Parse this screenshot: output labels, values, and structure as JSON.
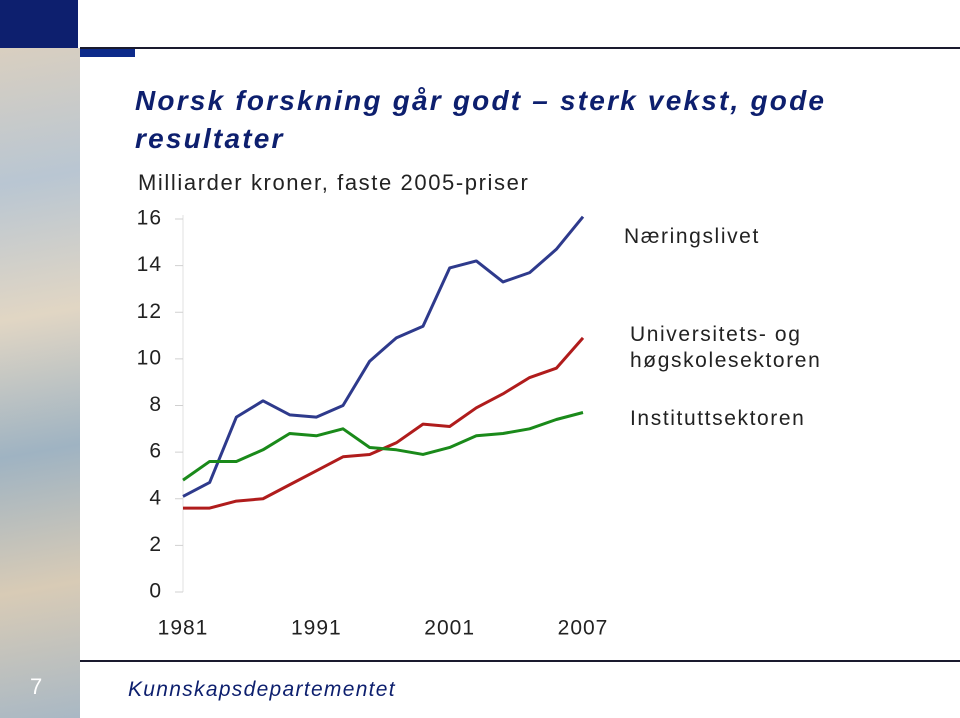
{
  "chart_data": {
    "type": "line",
    "title": "Norsk forskning går godt – sterk vekst, gode resultater",
    "subtitle": "Milliarder kroner, faste 2005-priser",
    "categories": [
      "1981",
      null,
      null,
      null,
      null,
      "1991",
      null,
      null,
      null,
      null,
      "2001",
      null,
      null,
      null,
      null,
      "2007"
    ],
    "series": [
      {
        "name": "Næringslivet",
        "color": "#2e3a8c",
        "values": [
          4.1,
          4.7,
          7.5,
          8.2,
          7.6,
          7.5,
          8.0,
          9.9,
          10.9,
          11.4,
          13.9,
          14.2,
          13.3,
          13.7,
          14.7,
          16.1
        ]
      },
      {
        "name": "Universitets- og høgskolesektoren",
        "color": "#b01c1c",
        "values": [
          3.6,
          3.6,
          3.9,
          4.0,
          4.6,
          5.2,
          5.8,
          5.9,
          6.4,
          7.2,
          7.1,
          7.9,
          8.5,
          9.2,
          9.6,
          10.9
        ]
      },
      {
        "name": "Instituttsektoren",
        "color": "#1a8a1a",
        "values": [
          4.8,
          5.6,
          5.6,
          6.1,
          6.8,
          6.7,
          7.0,
          6.2,
          6.1,
          5.9,
          6.2,
          6.7,
          6.8,
          7.0,
          7.4,
          7.7
        ]
      }
    ],
    "ylim": [
      0,
      16
    ],
    "yticks": [
      0,
      2,
      4,
      6,
      8,
      10,
      12,
      14,
      16
    ],
    "grid": false
  },
  "slide": {
    "page_number": "7",
    "footer": "Kunnskapsdepartementet"
  }
}
